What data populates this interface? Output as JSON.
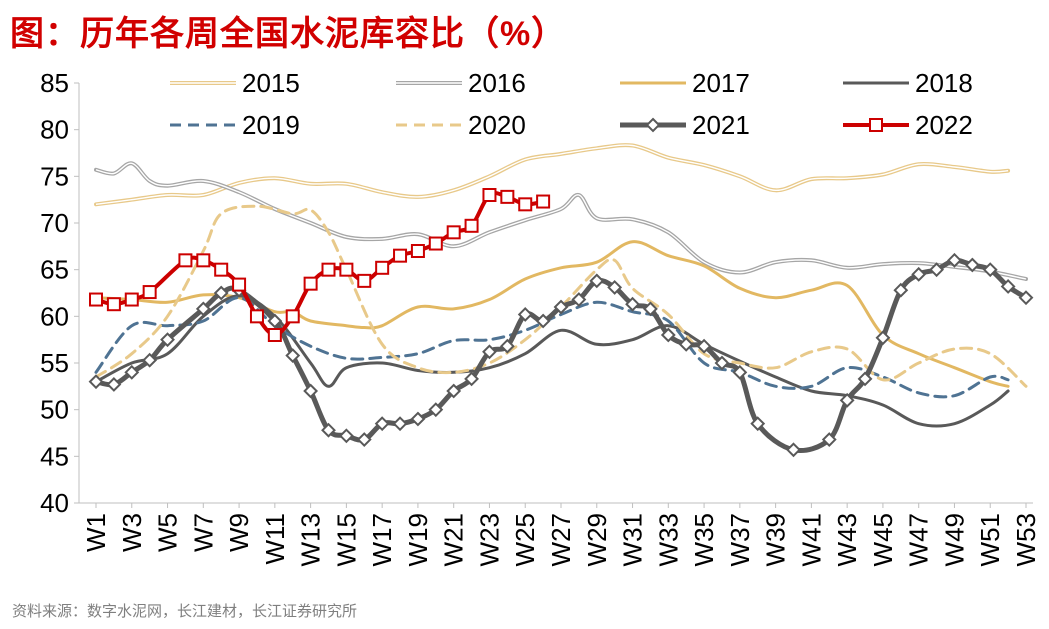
{
  "chart_data": {
    "type": "line",
    "title": "图：历年各周全国水泥库容比（%）",
    "source": "资料来源：数字水泥网，长江建材，长江证券研究所",
    "xlabel": "",
    "ylabel": "",
    "ylim": [
      40,
      85
    ],
    "yticks": [
      40,
      45,
      50,
      55,
      60,
      65,
      70,
      75,
      80,
      85
    ],
    "xticks": [
      "W1",
      "W3",
      "W5",
      "W7",
      "W9",
      "W11",
      "W13",
      "W15",
      "W17",
      "W19",
      "W21",
      "W23",
      "W25",
      "W27",
      "W29",
      "W31",
      "W33",
      "W35",
      "W37",
      "W39",
      "W41",
      "W43",
      "W45",
      "W47",
      "W49",
      "W51",
      "W53"
    ],
    "legend_position": "top",
    "series": [
      {
        "name": "2015",
        "color": "#e8c98a",
        "width": 2,
        "style": "solid",
        "marker": "none",
        "points": [
          [
            1,
            72
          ],
          [
            3,
            72.5
          ],
          [
            5,
            73
          ],
          [
            7,
            73
          ],
          [
            9,
            74.3
          ],
          [
            11,
            74.8
          ],
          [
            13,
            74.2
          ],
          [
            15,
            74.2
          ],
          [
            17,
            73.3
          ],
          [
            19,
            72.8
          ],
          [
            21,
            73.5
          ],
          [
            23,
            75
          ],
          [
            25,
            76.8
          ],
          [
            27,
            77.4
          ],
          [
            29,
            78
          ],
          [
            31,
            78.3
          ],
          [
            33,
            77
          ],
          [
            35,
            76.2
          ],
          [
            37,
            75
          ],
          [
            39,
            73.5
          ],
          [
            41,
            74.7
          ],
          [
            43,
            74.8
          ],
          [
            45,
            75.2
          ],
          [
            47,
            76.3
          ],
          [
            49,
            76
          ],
          [
            51,
            75.5
          ],
          [
            52,
            75.6
          ]
        ]
      },
      {
        "name": "2016",
        "color": "#a6a6a6",
        "width": 2,
        "style": "solid",
        "marker": "none",
        "points": [
          [
            1,
            75.7
          ],
          [
            2,
            75.3
          ],
          [
            3,
            76.4
          ],
          [
            4,
            74.5
          ],
          [
            5,
            74
          ],
          [
            7,
            74.5
          ],
          [
            9,
            73.3
          ],
          [
            11,
            71.5
          ],
          [
            13,
            70
          ],
          [
            15,
            68.5
          ],
          [
            17,
            68.3
          ],
          [
            19,
            68.8
          ],
          [
            21,
            67.5
          ],
          [
            23,
            69
          ],
          [
            25,
            70.3
          ],
          [
            27,
            71.5
          ],
          [
            28,
            73
          ],
          [
            29,
            70.5
          ],
          [
            31,
            70.4
          ],
          [
            33,
            69
          ],
          [
            35,
            65.8
          ],
          [
            37,
            64.7
          ],
          [
            39,
            65.8
          ],
          [
            41,
            66
          ],
          [
            43,
            65.2
          ],
          [
            45,
            65.6
          ],
          [
            47,
            65.7
          ],
          [
            49,
            65.3
          ],
          [
            51,
            64.8
          ],
          [
            53,
            64
          ]
        ]
      },
      {
        "name": "2017",
        "color": "#e2b862",
        "width": 3,
        "style": "solid",
        "marker": "none",
        "points": [
          [
            1,
            62
          ],
          [
            3,
            61.8
          ],
          [
            5,
            61.5
          ],
          [
            7,
            62.3
          ],
          [
            9,
            62
          ],
          [
            11,
            60.5
          ],
          [
            12,
            60.5
          ],
          [
            13,
            59.5
          ],
          [
            15,
            59
          ],
          [
            16,
            58.8
          ],
          [
            17,
            59
          ],
          [
            19,
            61
          ],
          [
            21,
            60.8
          ],
          [
            23,
            61.8
          ],
          [
            25,
            64
          ],
          [
            27,
            65.2
          ],
          [
            29,
            65.8
          ],
          [
            31,
            68
          ],
          [
            33,
            66.5
          ],
          [
            35,
            65.4
          ],
          [
            37,
            63
          ],
          [
            39,
            62
          ],
          [
            41,
            62.8
          ],
          [
            43,
            63.3
          ],
          [
            45,
            58
          ],
          [
            47,
            56
          ],
          [
            49,
            54.5
          ],
          [
            51,
            53
          ],
          [
            52,
            52.5
          ]
        ]
      },
      {
        "name": "2018",
        "color": "#595959",
        "width": 3,
        "style": "solid",
        "marker": "none",
        "points": [
          [
            1,
            53
          ],
          [
            3,
            55
          ],
          [
            5,
            56
          ],
          [
            7,
            60
          ],
          [
            9,
            62.2
          ],
          [
            11,
            60
          ],
          [
            13,
            55
          ],
          [
            14,
            52.5
          ],
          [
            15,
            54.5
          ],
          [
            17,
            55
          ],
          [
            19,
            54.2
          ],
          [
            21,
            54
          ],
          [
            23,
            54.5
          ],
          [
            25,
            56
          ],
          [
            27,
            58.5
          ],
          [
            29,
            57
          ],
          [
            31,
            57.5
          ],
          [
            33,
            59
          ],
          [
            35,
            57
          ],
          [
            37,
            55.2
          ],
          [
            39,
            53.5
          ],
          [
            41,
            52
          ],
          [
            43,
            51.5
          ],
          [
            45,
            50.5
          ],
          [
            47,
            48.5
          ],
          [
            49,
            48.5
          ],
          [
            51,
            50.5
          ],
          [
            52,
            52
          ]
        ]
      },
      {
        "name": "2019",
        "color": "#4f7393",
        "width": 3,
        "style": "dashed",
        "marker": "none",
        "points": [
          [
            1,
            54
          ],
          [
            3,
            59
          ],
          [
            5,
            59
          ],
          [
            7,
            59.5
          ],
          [
            9,
            62
          ],
          [
            11,
            59
          ],
          [
            13,
            56.8
          ],
          [
            15,
            55.5
          ],
          [
            17,
            55.6
          ],
          [
            19,
            56
          ],
          [
            21,
            57.4
          ],
          [
            23,
            57.5
          ],
          [
            25,
            58.5
          ],
          [
            27,
            60.2
          ],
          [
            29,
            61.5
          ],
          [
            31,
            60.5
          ],
          [
            33,
            59.5
          ],
          [
            35,
            55
          ],
          [
            37,
            54
          ],
          [
            39,
            52.5
          ],
          [
            41,
            52.5
          ],
          [
            43,
            54.5
          ],
          [
            45,
            53.5
          ],
          [
            47,
            51.8
          ],
          [
            49,
            51.5
          ],
          [
            51,
            53.5
          ],
          [
            52,
            53.2
          ]
        ]
      },
      {
        "name": "2020",
        "color": "#e8c98a",
        "width": 3,
        "style": "dashed",
        "marker": "none",
        "points": [
          [
            1,
            53.5
          ],
          [
            3,
            56
          ],
          [
            5,
            60
          ],
          [
            7,
            67
          ],
          [
            8,
            71
          ],
          [
            10,
            71.8
          ],
          [
            12,
            71
          ],
          [
            13,
            71.4
          ],
          [
            14,
            69
          ],
          [
            15,
            65
          ],
          [
            17,
            57
          ],
          [
            19,
            54.5
          ],
          [
            21,
            54
          ],
          [
            23,
            55
          ],
          [
            25,
            57.5
          ],
          [
            27,
            61
          ],
          [
            29,
            65
          ],
          [
            30,
            66
          ],
          [
            31,
            63
          ],
          [
            33,
            60.2
          ],
          [
            35,
            56
          ],
          [
            37,
            55
          ],
          [
            39,
            54.5
          ],
          [
            41,
            56.2
          ],
          [
            43,
            56.5
          ],
          [
            45,
            53.2
          ],
          [
            47,
            55
          ],
          [
            49,
            56.5
          ],
          [
            51,
            56
          ],
          [
            53,
            52.5
          ]
        ]
      },
      {
        "name": "2021",
        "color": "#595959",
        "width": 5,
        "style": "solid",
        "marker": "diamond",
        "points": [
          [
            1,
            53
          ],
          [
            2,
            52.7
          ],
          [
            3,
            54
          ],
          [
            4,
            55.3
          ],
          [
            5,
            57.5
          ],
          [
            7,
            60.8
          ],
          [
            8,
            62.5
          ],
          [
            9,
            62.8
          ],
          [
            11,
            59.5
          ],
          [
            12,
            55.8
          ],
          [
            13,
            52
          ],
          [
            14,
            47.8
          ],
          [
            15,
            47.2
          ],
          [
            16,
            46.8
          ],
          [
            17,
            48.5
          ],
          [
            18,
            48.5
          ],
          [
            19,
            49
          ],
          [
            20,
            50
          ],
          [
            21,
            52
          ],
          [
            22,
            53.3
          ],
          [
            23,
            56.2
          ],
          [
            24,
            56.8
          ],
          [
            25,
            60.2
          ],
          [
            26,
            59.5
          ],
          [
            27,
            61
          ],
          [
            28,
            61.8
          ],
          [
            29,
            63.8
          ],
          [
            30,
            63.1
          ],
          [
            31,
            61.3
          ],
          [
            32,
            60.8
          ],
          [
            33,
            58
          ],
          [
            34,
            57
          ],
          [
            35,
            56.8
          ],
          [
            36,
            55
          ],
          [
            37,
            54
          ],
          [
            38,
            48.5
          ],
          [
            40,
            45.7
          ],
          [
            42,
            46.8
          ],
          [
            43,
            51
          ],
          [
            44,
            53.3
          ],
          [
            45,
            57.7
          ],
          [
            46,
            62.8
          ],
          [
            47,
            64.5
          ],
          [
            48,
            65
          ],
          [
            49,
            66
          ],
          [
            50,
            65.5
          ],
          [
            51,
            65
          ],
          [
            52,
            63.2
          ],
          [
            53,
            62
          ]
        ]
      },
      {
        "name": "2022",
        "color": "#cc0000",
        "width": 4,
        "style": "solid",
        "marker": "square",
        "points": [
          [
            1,
            61.8
          ],
          [
            2,
            61.3
          ],
          [
            3,
            61.8
          ],
          [
            4,
            62.6
          ],
          [
            6,
            66
          ],
          [
            7,
            66
          ],
          [
            8,
            65
          ],
          [
            9,
            63.4
          ],
          [
            10,
            60
          ],
          [
            11,
            58
          ],
          [
            12,
            60
          ],
          [
            13,
            63.5
          ],
          [
            14,
            65
          ],
          [
            15,
            65
          ],
          [
            16,
            63.8
          ],
          [
            17,
            65.2
          ],
          [
            18,
            66.5
          ],
          [
            19,
            67
          ],
          [
            20,
            67.8
          ],
          [
            21,
            69
          ],
          [
            22,
            69.7
          ],
          [
            23,
            73
          ],
          [
            24,
            72.8
          ],
          [
            25,
            72
          ],
          [
            26,
            72.3
          ]
        ]
      }
    ]
  }
}
